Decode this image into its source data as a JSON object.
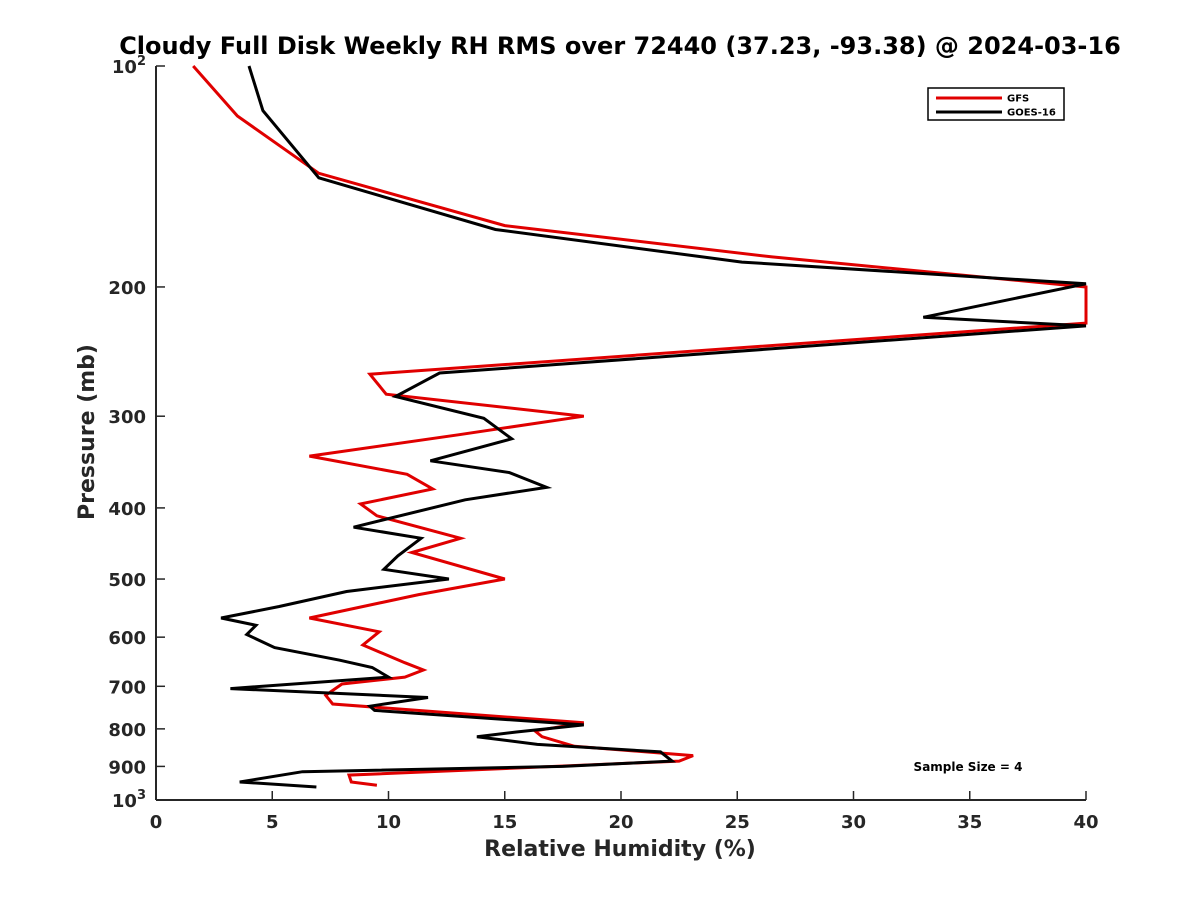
{
  "chart_data": {
    "type": "line",
    "title": "Cloudy Full Disk Weekly RH RMS over 72440 (37.23, -93.38) @ 2024-03-16",
    "xlabel": "Relative Humidity (%)",
    "ylabel": "Pressure (mb)",
    "xlim": [
      0,
      40
    ],
    "ylim": [
      100,
      1000
    ],
    "yscale": "log",
    "yreversed": true,
    "grid": false,
    "legend_position": "top-right",
    "x_ticks": [
      {
        "value": 0,
        "label": "0"
      },
      {
        "value": 5,
        "label": "5"
      },
      {
        "value": 10,
        "label": "10"
      },
      {
        "value": 15,
        "label": "15"
      },
      {
        "value": 20,
        "label": "20"
      },
      {
        "value": 25,
        "label": "25"
      },
      {
        "value": 30,
        "label": "30"
      },
      {
        "value": 35,
        "label": "35"
      },
      {
        "value": 40,
        "label": "40"
      }
    ],
    "y_ticks": [
      {
        "value": 100,
        "label": "10",
        "sup": "2"
      },
      {
        "value": 200,
        "label": "200"
      },
      {
        "value": 300,
        "label": "300"
      },
      {
        "value": 400,
        "label": "400"
      },
      {
        "value": 500,
        "label": "500"
      },
      {
        "value": 600,
        "label": "600"
      },
      {
        "value": 700,
        "label": "700"
      },
      {
        "value": 800,
        "label": "800"
      },
      {
        "value": 900,
        "label": "900"
      },
      {
        "value": 1000,
        "label": "10",
        "sup": "3"
      }
    ],
    "annotation": "Sample Size = 4",
    "series": [
      {
        "name": "GFS",
        "color": "#e00000",
        "points": [
          [
            1.6,
            100
          ],
          [
            3.5,
            117
          ],
          [
            7.0,
            140
          ],
          [
            15.0,
            165
          ],
          [
            26.5,
            182
          ],
          [
            40.0,
            200
          ],
          [
            40.0,
            224
          ],
          [
            9.2,
            263
          ],
          [
            9.9,
            280
          ],
          [
            18.4,
            300
          ],
          [
            13.0,
            318
          ],
          [
            6.6,
            340
          ],
          [
            10.8,
            360
          ],
          [
            11.9,
            377
          ],
          [
            8.8,
            395
          ],
          [
            9.5,
            410
          ],
          [
            13.1,
            440
          ],
          [
            11.0,
            460
          ],
          [
            15.0,
            500
          ],
          [
            11.3,
            525
          ],
          [
            6.6,
            565
          ],
          [
            9.6,
            590
          ],
          [
            8.9,
            615
          ],
          [
            10.7,
            650
          ],
          [
            11.5,
            665
          ],
          [
            10.7,
            680
          ],
          [
            8.0,
            695
          ],
          [
            7.3,
            720
          ],
          [
            7.6,
            740
          ],
          [
            18.4,
            785
          ],
          [
            16.3,
            805
          ],
          [
            16.6,
            820
          ],
          [
            18.0,
            845
          ],
          [
            23.1,
            870
          ],
          [
            22.5,
            885
          ],
          [
            8.3,
            925
          ],
          [
            8.4,
            945
          ],
          [
            9.5,
            955
          ]
        ]
      },
      {
        "name": "GOES-16",
        "color": "#000000",
        "points": [
          [
            4.0,
            100
          ],
          [
            4.6,
            115
          ],
          [
            7.0,
            142
          ],
          [
            14.6,
            167
          ],
          [
            25.2,
            185
          ],
          [
            40.0,
            198
          ],
          [
            33.0,
            220
          ],
          [
            40.0,
            226
          ],
          [
            12.2,
            262
          ],
          [
            10.3,
            282
          ],
          [
            14.1,
            302
          ],
          [
            15.3,
            322
          ],
          [
            11.8,
            345
          ],
          [
            15.2,
            358
          ],
          [
            16.8,
            375
          ],
          [
            13.3,
            390
          ],
          [
            8.5,
            425
          ],
          [
            11.4,
            440
          ],
          [
            10.4,
            465
          ],
          [
            9.8,
            485
          ],
          [
            12.6,
            500
          ],
          [
            8.2,
            520
          ],
          [
            5.3,
            545
          ],
          [
            2.8,
            565
          ],
          [
            4.3,
            578
          ],
          [
            3.9,
            595
          ],
          [
            5.1,
            620
          ],
          [
            7.9,
            645
          ],
          [
            9.3,
            660
          ],
          [
            10.0,
            680
          ],
          [
            3.2,
            705
          ],
          [
            11.7,
            725
          ],
          [
            9.2,
            745
          ],
          [
            9.4,
            755
          ],
          [
            18.4,
            790
          ],
          [
            15.5,
            808
          ],
          [
            13.8,
            820
          ],
          [
            16.4,
            840
          ],
          [
            21.7,
            860
          ],
          [
            22.2,
            885
          ],
          [
            17.5,
            900
          ],
          [
            6.3,
            915
          ],
          [
            3.6,
            945
          ],
          [
            6.9,
            960
          ]
        ]
      }
    ]
  }
}
